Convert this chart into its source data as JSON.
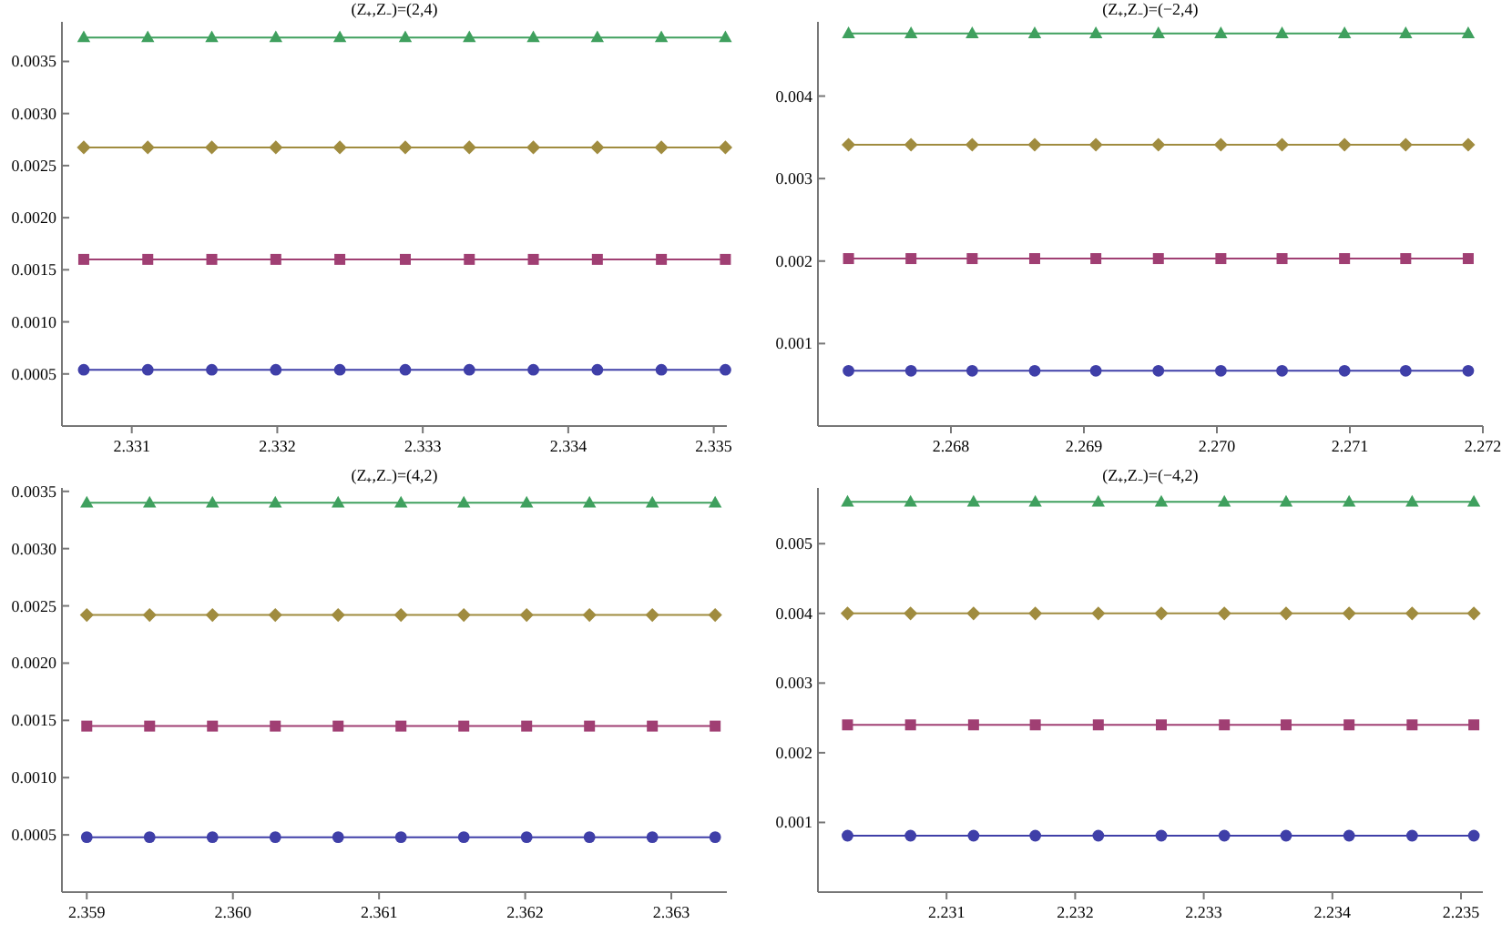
{
  "chart_data": [
    {
      "type": "line",
      "title": "(Z₊,Z₋)=(2,4)",
      "x": [
        2.33067,
        2.33111,
        2.33155,
        2.33199,
        2.33243,
        2.33288,
        2.33332,
        2.33376,
        2.3342,
        2.33464,
        2.33508
      ],
      "xlim": [
        2.33052,
        2.33509
      ],
      "xticks": [
        2.331,
        2.332,
        2.333,
        2.334,
        2.335
      ],
      "ylim": [
        0,
        0.00388
      ],
      "yticks": [
        0.0005,
        {
          "value": 0.001,
          "label": "0.0010"
        },
        0.0015,
        {
          "value": 0.002,
          "label": "0.0020"
        },
        0.0025,
        {
          "value": 0.003,
          "label": "0.0030"
        },
        0.0035
      ],
      "series": [
        {
          "color": "#3f3fa8",
          "marker": "circle",
          "values": [
            0.00054,
            0.00054,
            0.00054,
            0.00054,
            0.00054,
            0.00054,
            0.00054,
            0.00054,
            0.00054,
            0.00054,
            0.00054
          ]
        },
        {
          "color": "#a03f73",
          "marker": "square",
          "values": [
            0.0016,
            0.0016,
            0.0016,
            0.0016,
            0.0016,
            0.0016,
            0.0016,
            0.0016,
            0.0016,
            0.0016,
            0.0016
          ]
        },
        {
          "color": "#a08c3f",
          "marker": "diamond",
          "values": [
            0.002675,
            0.002675,
            0.002675,
            0.002675,
            0.002675,
            0.002675,
            0.002675,
            0.002675,
            0.002675,
            0.002675,
            0.002675
          ]
        },
        {
          "color": "#3fa05e",
          "marker": "triangle",
          "values": [
            0.00373,
            0.00373,
            0.00373,
            0.00373,
            0.00373,
            0.00373,
            0.00373,
            0.00373,
            0.00373,
            0.00373,
            0.00373
          ]
        }
      ]
    },
    {
      "type": "line",
      "title": "(Z₊,Z₋)=(−2,4)",
      "x": [
        2.26723,
        2.2677,
        2.26816,
        2.26863,
        2.26909,
        2.26956,
        2.27003,
        2.27049,
        2.27096,
        2.27142,
        2.27189
      ],
      "xlim": [
        2.267,
        2.272
      ],
      "xticks": [
        {
          "value": 2.268,
          "label": "2.268"
        },
        {
          "value": 2.269,
          "label": "2.269"
        },
        {
          "value": 2.27,
          "label": "2.270"
        },
        {
          "value": 2.271,
          "label": "2.271"
        },
        {
          "value": 2.272,
          "label": "2.272"
        }
      ],
      "ylim": [
        0,
        0.0049
      ],
      "yticks": [
        0.001,
        0.002,
        0.003,
        0.004
      ],
      "series": [
        {
          "color": "#3f3fa8",
          "marker": "circle",
          "values": [
            0.00067,
            0.00067,
            0.00067,
            0.00067,
            0.00067,
            0.00067,
            0.00067,
            0.00067,
            0.00067,
            0.00067,
            0.00067
          ]
        },
        {
          "color": "#a03f73",
          "marker": "square",
          "values": [
            0.00203,
            0.00203,
            0.00203,
            0.00203,
            0.00203,
            0.00203,
            0.00203,
            0.00203,
            0.00203,
            0.00203,
            0.00203
          ]
        },
        {
          "color": "#a08c3f",
          "marker": "diamond",
          "values": [
            0.00341,
            0.00341,
            0.00341,
            0.00341,
            0.00341,
            0.00341,
            0.00341,
            0.00341,
            0.00341,
            0.00341,
            0.00341
          ]
        },
        {
          "color": "#3fa05e",
          "marker": "triangle",
          "values": [
            0.00476,
            0.00476,
            0.00476,
            0.00476,
            0.00476,
            0.00476,
            0.00476,
            0.00476,
            0.00476,
            0.00476,
            0.00476
          ]
        }
      ]
    },
    {
      "type": "line",
      "title": "(Z₊,Z₋)=(4,2)",
      "x": [
        2.359,
        2.35943,
        2.35986,
        2.36029,
        2.36072,
        2.36115,
        2.36158,
        2.36201,
        2.36244,
        2.36287,
        2.3633
      ],
      "xlim": [
        2.35883,
        2.36338
      ],
      "xticks": [
        2.359,
        {
          "value": 2.36,
          "label": "2.360"
        },
        2.361,
        2.362,
        2.363
      ],
      "ylim": [
        0,
        0.00353
      ],
      "yticks": [
        0.0005,
        {
          "value": 0.001,
          "label": "0.0010"
        },
        0.0015,
        {
          "value": 0.002,
          "label": "0.0020"
        },
        0.0025,
        {
          "value": 0.003,
          "label": "0.0030"
        },
        0.0035
      ],
      "series": [
        {
          "color": "#3f3fa8",
          "marker": "circle",
          "values": [
            0.00048,
            0.00048,
            0.00048,
            0.00048,
            0.00048,
            0.00048,
            0.00048,
            0.00048,
            0.00048,
            0.00048,
            0.00048
          ]
        },
        {
          "color": "#a03f73",
          "marker": "square",
          "values": [
            0.00145,
            0.00145,
            0.00145,
            0.00145,
            0.00145,
            0.00145,
            0.00145,
            0.00145,
            0.00145,
            0.00145,
            0.00145
          ]
        },
        {
          "color": "#a08c3f",
          "marker": "diamond",
          "values": [
            0.00242,
            0.00242,
            0.00242,
            0.00242,
            0.00242,
            0.00242,
            0.00242,
            0.00242,
            0.00242,
            0.00242,
            0.00242
          ]
        },
        {
          "color": "#3fa05e",
          "marker": "triangle",
          "values": [
            0.0034,
            0.0034,
            0.0034,
            0.0034,
            0.0034,
            0.0034,
            0.0034,
            0.0034,
            0.0034,
            0.0034,
            0.0034
          ]
        }
      ]
    },
    {
      "type": "line",
      "title": "(Z₊,Z₋)=(−4,2)",
      "x": [
        2.23023,
        2.23072,
        2.23121,
        2.23169,
        2.23218,
        2.23267,
        2.23316,
        2.23364,
        2.23413,
        2.23462,
        2.2351
      ],
      "xlim": [
        2.23,
        2.23517
      ],
      "xticks": [
        2.231,
        2.232,
        2.233,
        2.234,
        2.235
      ],
      "ylim": [
        0,
        0.0058
      ],
      "yticks": [
        0.001,
        0.002,
        0.003,
        0.004,
        0.005
      ],
      "series": [
        {
          "color": "#3f3fa8",
          "marker": "circle",
          "values": [
            0.00081,
            0.00081,
            0.00081,
            0.00081,
            0.00081,
            0.00081,
            0.00081,
            0.00081,
            0.00081,
            0.00081,
            0.00081
          ]
        },
        {
          "color": "#a03f73",
          "marker": "square",
          "values": [
            0.0024,
            0.0024,
            0.0024,
            0.0024,
            0.0024,
            0.0024,
            0.0024,
            0.0024,
            0.0024,
            0.0024,
            0.0024
          ]
        },
        {
          "color": "#a08c3f",
          "marker": "diamond",
          "values": [
            0.004,
            0.004,
            0.004,
            0.004,
            0.004,
            0.004,
            0.004,
            0.004,
            0.004,
            0.004,
            0.004
          ]
        },
        {
          "color": "#3fa05e",
          "marker": "triangle",
          "values": [
            0.0056,
            0.0056,
            0.0056,
            0.0056,
            0.0056,
            0.0056,
            0.0056,
            0.0056,
            0.0056,
            0.0056,
            0.0056
          ]
        }
      ]
    }
  ]
}
